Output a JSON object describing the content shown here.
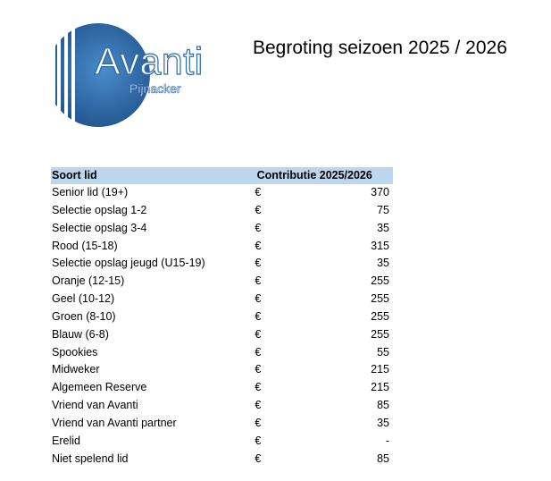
{
  "logo": {
    "word": "Avanti",
    "sub": "Pijnacker"
  },
  "title": "Begroting seizoen 2025 / 2026",
  "table": {
    "headers": {
      "name": "Soort lid",
      "contribution": "Contributie 2025/2026"
    },
    "rows": [
      {
        "name": "Senior lid (19+)",
        "currency": "€",
        "amount": "370"
      },
      {
        "name": "Selectie opslag 1-2",
        "currency": "€",
        "amount": "75"
      },
      {
        "name": "Selectie opslag 3-4",
        "currency": "€",
        "amount": "35"
      },
      {
        "name": "Rood (15-18)",
        "currency": "€",
        "amount": "315"
      },
      {
        "name": "Selectie opslag jeugd (U15-19)",
        "currency": "€",
        "amount": "35"
      },
      {
        "name": "Oranje (12-15)",
        "currency": "€",
        "amount": "255"
      },
      {
        "name": "Geel (10-12)",
        "currency": "€",
        "amount": "255"
      },
      {
        "name": "Groen (8-10)",
        "currency": "€",
        "amount": "255"
      },
      {
        "name": "Blauw (6-8)",
        "currency": "€",
        "amount": "255"
      },
      {
        "name": "Spookies",
        "currency": "€",
        "amount": "55"
      },
      {
        "name": "Midweker",
        "currency": "€",
        "amount": "215"
      },
      {
        "name": "Algemeen Reserve",
        "currency": "€",
        "amount": "215"
      },
      {
        "name": "Vriend van Avanti",
        "currency": "€",
        "amount": "85"
      },
      {
        "name": "Vriend van Avanti partner",
        "currency": "€",
        "amount": "35"
      },
      {
        "name": "Erelid",
        "currency": "€",
        "amount": "-"
      },
      {
        "name": "Niet spelend lid",
        "currency": "€",
        "amount": "85"
      }
    ]
  },
  "colors": {
    "logo_blue": "#2e6aa8",
    "header_fill": "#bcd6ee"
  }
}
